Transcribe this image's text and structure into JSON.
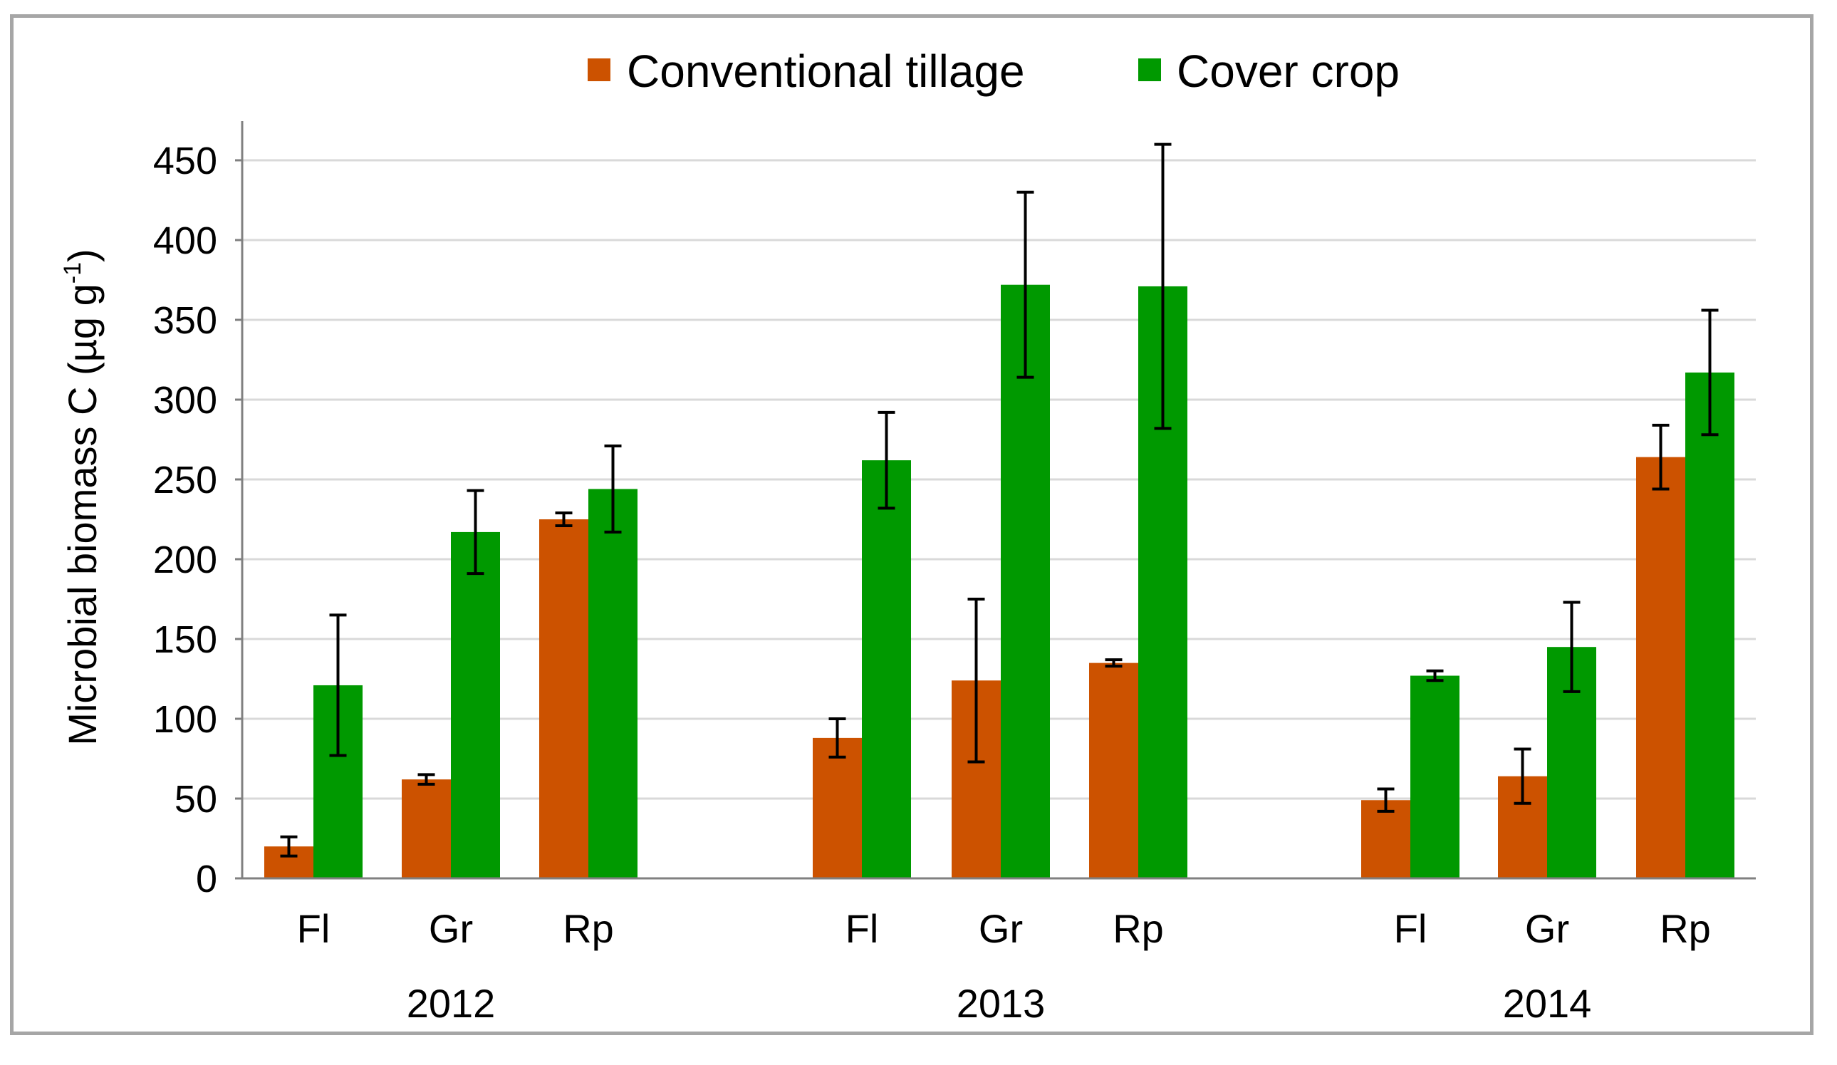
{
  "chart_data": {
    "type": "bar",
    "ylabel": "Microbial biomass  C (µg g",
    "ylabel_sup": "-1",
    "ylabel_close": ")",
    "ylim": [
      0,
      450
    ],
    "yticks": [
      0,
      50,
      100,
      150,
      200,
      250,
      300,
      350,
      400,
      450
    ],
    "grid": true,
    "legend_position": "top-center",
    "groups": [
      {
        "year": "2012",
        "categories": [
          "Fl",
          "Gr",
          "Rp"
        ]
      },
      {
        "year": "2013",
        "categories": [
          "Fl",
          "Gr",
          "Rp"
        ]
      },
      {
        "year": "2014",
        "categories": [
          "Fl",
          "Gr",
          "Rp"
        ]
      }
    ],
    "series": [
      {
        "name": "Conventional tillage",
        "color": "#cc5200",
        "values": [
          20,
          62,
          225,
          88,
          124,
          135,
          49,
          64,
          264
        ],
        "errors": [
          6,
          3,
          4,
          12,
          51,
          2,
          7,
          17,
          20
        ]
      },
      {
        "name": "Cover crop",
        "color": "#009900",
        "values": [
          121,
          217,
          244,
          262,
          372,
          371,
          127,
          145,
          317
        ],
        "errors": [
          44,
          26,
          27,
          30,
          58,
          89,
          3,
          28,
          39
        ]
      }
    ]
  }
}
